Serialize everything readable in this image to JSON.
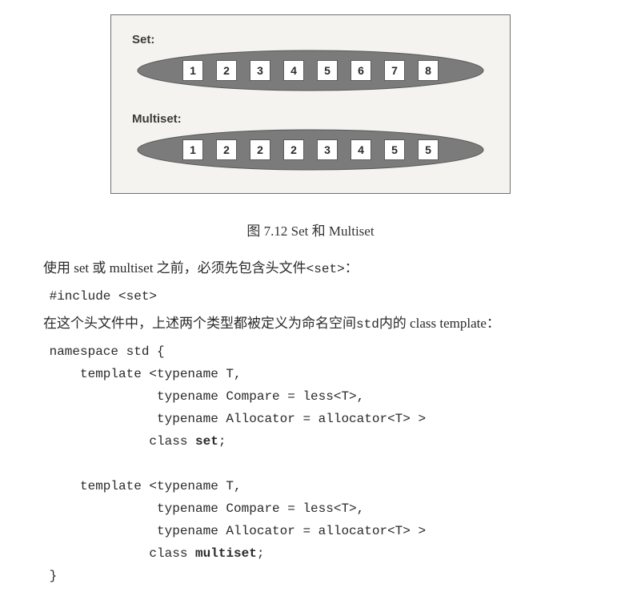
{
  "figure": {
    "set_label": "Set:",
    "multiset_label": "Multiset:",
    "set_values": [
      "1",
      "2",
      "3",
      "4",
      "5",
      "6",
      "7",
      "8"
    ],
    "multiset_values": [
      "1",
      "2",
      "2",
      "2",
      "3",
      "4",
      "5",
      "5"
    ],
    "ellipse_fill": "#7b7b7b",
    "ellipse_stroke": "#575757",
    "panel_bg": "#f5f3ef",
    "panel_border": "#707070",
    "cell_bg": "#ffffff",
    "cell_border": "#5c5c5c"
  },
  "caption": "图 7.12    Set 和 Multiset",
  "para1_pre": "使用 set 或 multiset 之前，必须先包含头文件",
  "para1_code": "<set>",
  "para1_post": "：",
  "include_line": "#include <set>",
  "para2_pre": "在这个头文件中，上述两个类型都被定义为命名空间",
  "para2_code": "std",
  "para2_post": "内的 class template：",
  "code_ns_open": "namespace std {",
  "code_tmpl1_l1": "    template <typename T,",
  "code_tmpl1_l2": "              typename Compare = less<T>,",
  "code_tmpl1_l3": "              typename Allocator = allocator<T> >",
  "code_tmpl1_l4a": "             class ",
  "code_tmpl1_l4b": "set",
  "code_tmpl1_l4c": ";",
  "code_tmpl2_l1": "    template <typename T,",
  "code_tmpl2_l2": "              typename Compare = less<T>,",
  "code_tmpl2_l3": "              typename Allocator = allocator<T> >",
  "code_tmpl2_l4a": "             class ",
  "code_tmpl2_l4b": "multiset",
  "code_tmpl2_l4c": ";",
  "code_ns_close": "}"
}
